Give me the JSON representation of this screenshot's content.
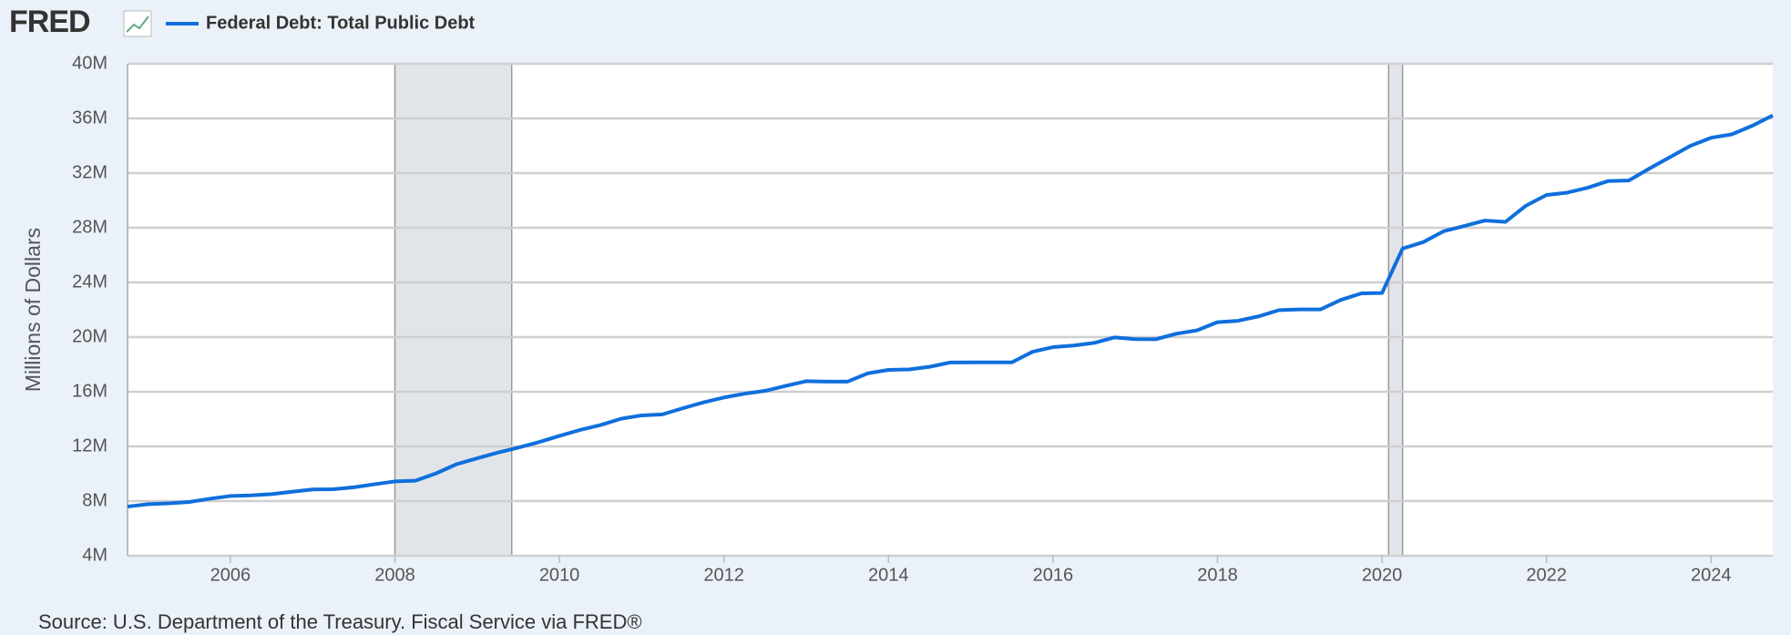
{
  "chart_data": {
    "type": "line",
    "logo": "FRED",
    "y_label": "Millions of Dollars",
    "source": "Source: U.S. Department of the Treasury. Fiscal Service via FRED®",
    "xlim": [
      2004.75,
      2024.75
    ],
    "xticks": [
      2006,
      2008,
      2010,
      2012,
      2014,
      2016,
      2018,
      2020,
      2022,
      2024
    ],
    "ylim": [
      4000000,
      40000000
    ],
    "yticks": [
      {
        "value": 4000000,
        "label": "4M"
      },
      {
        "value": 8000000,
        "label": "8M"
      },
      {
        "value": 12000000,
        "label": "12M"
      },
      {
        "value": 16000000,
        "label": "16M"
      },
      {
        "value": 20000000,
        "label": "20M"
      },
      {
        "value": 24000000,
        "label": "24M"
      },
      {
        "value": 28000000,
        "label": "28M"
      },
      {
        "value": 32000000,
        "label": "32M"
      },
      {
        "value": 36000000,
        "label": "36M"
      },
      {
        "value": 40000000,
        "label": "40M"
      }
    ],
    "grid": true,
    "recessions": [
      [
        2008.0,
        2009.42
      ],
      [
        2020.08,
        2020.25
      ]
    ],
    "x": [
      2004.75,
      2005,
      2005.25,
      2005.5,
      2005.75,
      2006,
      2006.25,
      2006.5,
      2006.75,
      2007,
      2007.25,
      2007.5,
      2007.75,
      2008,
      2008.25,
      2008.5,
      2008.75,
      2009,
      2009.25,
      2009.5,
      2009.75,
      2010,
      2010.25,
      2010.5,
      2010.75,
      2011,
      2011.25,
      2011.5,
      2011.75,
      2012,
      2012.25,
      2012.5,
      2012.75,
      2013,
      2013.25,
      2013.5,
      2013.75,
      2014,
      2014.25,
      2014.5,
      2014.75,
      2015,
      2015.25,
      2015.5,
      2015.75,
      2016,
      2016.25,
      2016.5,
      2016.75,
      2017,
      2017.25,
      2017.5,
      2017.75,
      2018,
      2018.25,
      2018.5,
      2018.75,
      2019,
      2019.25,
      2019.5,
      2019.75,
      2020,
      2020.25,
      2020.5,
      2020.75,
      2021,
      2021.25,
      2021.5,
      2021.75,
      2022,
      2022.25,
      2022.5,
      2022.75,
      2023,
      2023.25,
      2023.5,
      2023.75,
      2024,
      2024.25,
      2024.5,
      2024.75
    ],
    "series": [
      {
        "name": "Federal Debt: Total Public Debt",
        "color": "#0f6fdc",
        "values": [
          7596144,
          7776939,
          7836500,
          7932710,
          8170424,
          8371156,
          8420042,
          8506974,
          8680224,
          8849665,
          8867673,
          9007653,
          9229172,
          9437594,
          9492006,
          10024725,
          10699805,
          11126941,
          11545275,
          11909829,
          12311350,
          12773123,
          13201790,
          13561623,
          14025215,
          14270114,
          14342909,
          14790340,
          15222940,
          15582079,
          15855525,
          16066241,
          16432730,
          16771381,
          16738184,
          16738184,
          17352015,
          17601227,
          17632606,
          17824071,
          18141444,
          18152056,
          18151998,
          18150618,
          18922179,
          19264939,
          19381591,
          19573445,
          19976827,
          19846420,
          19844554,
          20244900,
          20492874,
          21089643,
          21195070,
          21516058,
          21974096,
          22027880,
          22023283,
          22719402,
          23201380,
          23223813,
          26477174,
          26945391,
          27747798,
          28132570,
          28529436,
          28428919,
          29617215,
          30400960,
          30568582,
          30928912,
          31419689,
          31458438,
          32332274,
          33167334,
          34001494,
          34586533,
          34831634,
          35464674,
          36218605
        ]
      }
    ]
  }
}
